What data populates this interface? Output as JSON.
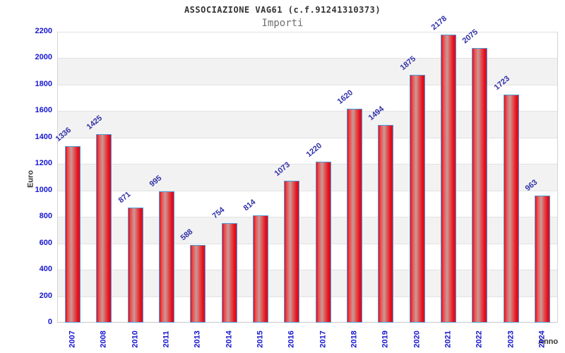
{
  "header": {
    "title": "ASSOCIAZIONE VAG61 (c.f.91241310373)",
    "subtitle": "Importi"
  },
  "chart_data": {
    "type": "bar",
    "title": "ASSOCIAZIONE VAG61 (c.f.91241310373)",
    "subtitle": "Importi",
    "xlabel": "Anno",
    "ylabel": "Euro",
    "categories": [
      "2007",
      "2008",
      "2010",
      "2011",
      "2013",
      "2014",
      "2015",
      "2016",
      "2017",
      "2018",
      "2019",
      "2020",
      "2021",
      "2022",
      "2023",
      "2024"
    ],
    "values": [
      1336,
      1425,
      871,
      995,
      588,
      754,
      814,
      1073,
      1220,
      1620,
      1494,
      1875,
      2178,
      2075,
      1723,
      963
    ],
    "ylim": [
      0,
      2200
    ],
    "ytick_step": 200,
    "grid": true,
    "legend": false,
    "colors": {
      "bar_edge_red": "#e30f1f",
      "bar_light_red": "#ee4f4f",
      "bar_center_highlight": "#c79b98",
      "bar_mid_red": "#e05252",
      "bar_dark_red": "#d90e1c",
      "bar_border_blue": "#4e9bd8",
      "tick_label_blue": "#1515d0",
      "value_label_blue": "#3030a8",
      "band_gray": "#f2f2f2",
      "gridline_gray": "#e2e2e2",
      "axis_gray": "#c6c6c6",
      "axis_title_dark": "#333333"
    }
  }
}
